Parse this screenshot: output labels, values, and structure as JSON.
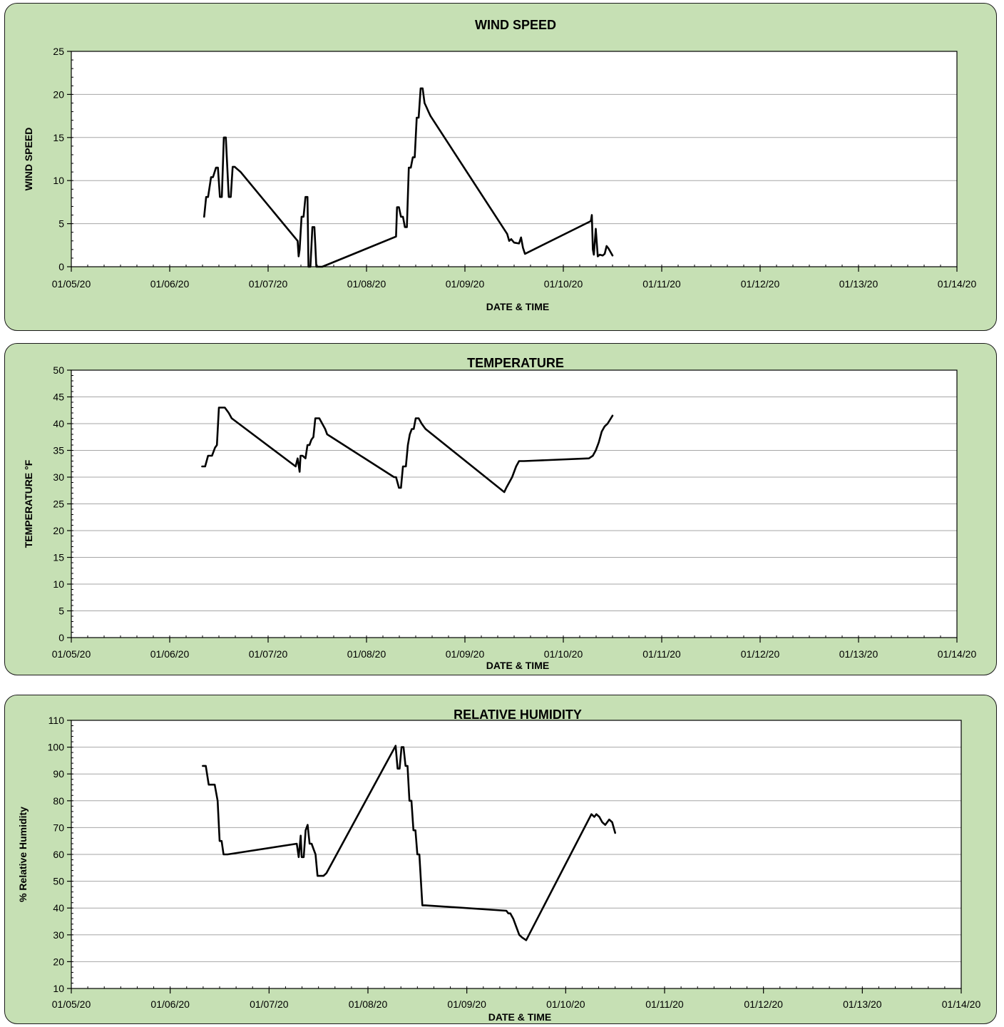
{
  "chart_data": [
    {
      "id": "wind",
      "type": "line",
      "title": "WIND SPEED",
      "xlabel": "DATE & TIME",
      "ylabel": "WIND SPEED",
      "xlim": [
        5,
        14
      ],
      "ylim": [
        0,
        25
      ],
      "ystep": 5,
      "x_tick_labels": [
        "01/05/20",
        "01/06/20",
        "01/07/20",
        "01/08/20",
        "01/09/20",
        "01/10/20",
        "01/11/20",
        "01/12/20",
        "01/13/20",
        "01/14/20"
      ],
      "grid": true,
      "line_color": "#000000",
      "series": [
        {
          "x": [
            6.35,
            6.37,
            6.39,
            6.42,
            6.44,
            6.47,
            6.49,
            6.51,
            6.53,
            6.55,
            6.57,
            6.6,
            6.62,
            6.64,
            6.66,
            6.68,
            6.7,
            6.72,
            7.3,
            7.31,
            7.32,
            7.34,
            7.36,
            7.38,
            7.4,
            7.41,
            7.42,
            7.43,
            7.45,
            7.47,
            7.48,
            7.49,
            7.5,
            7.55,
            8.3,
            8.31,
            8.33,
            8.35,
            8.37,
            8.39,
            8.41,
            8.43,
            8.45,
            8.47,
            8.49,
            8.51,
            8.53,
            8.55,
            8.57,
            8.59,
            8.61,
            8.63,
            8.65,
            9.43,
            9.45,
            9.47,
            9.5,
            9.55,
            9.57,
            9.59,
            9.61,
            10.28,
            10.29,
            10.3,
            10.31,
            10.33,
            10.35,
            10.37,
            10.4,
            10.42,
            10.44,
            10.46,
            10.5
          ],
          "y": [
            5.8,
            8.1,
            8.1,
            10.4,
            10.4,
            11.5,
            11.5,
            8.1,
            8.1,
            15.0,
            15.0,
            8.1,
            8.1,
            11.6,
            11.6,
            11.4,
            11.2,
            11.0,
            3.0,
            1.2,
            2.0,
            5.8,
            5.8,
            8.1,
            8.1,
            0.0,
            0.0,
            0.0,
            4.6,
            4.6,
            2.5,
            0.0,
            0.0,
            0.0,
            3.5,
            6.9,
            6.9,
            5.8,
            5.8,
            4.6,
            4.6,
            11.5,
            11.5,
            12.7,
            12.7,
            17.3,
            17.3,
            20.7,
            20.7,
            19.0,
            18.5,
            18.0,
            17.5,
            3.8,
            3.0,
            3.2,
            2.8,
            2.7,
            3.4,
            2.2,
            1.5,
            5.3,
            6.0,
            2.0,
            1.4,
            4.4,
            1.2,
            1.4,
            1.3,
            1.5,
            2.4,
            2.1,
            1.3
          ]
        }
      ]
    },
    {
      "id": "temp",
      "type": "line",
      "title": "TEMPERATURE",
      "xlabel": "DATE & TIME",
      "ylabel": "TEMPERATURE °F",
      "xlim": [
        5,
        14
      ],
      "ylim": [
        0,
        50
      ],
      "ystep": 5,
      "x_tick_labels": [
        "01/05/20",
        "01/06/20",
        "01/07/20",
        "01/08/20",
        "01/09/20",
        "01/10/20",
        "01/11/20",
        "01/12/20",
        "01/13/20",
        "01/14/20"
      ],
      "grid": true,
      "line_color": "#000000",
      "series": [
        {
          "x": [
            6.33,
            6.36,
            6.39,
            6.43,
            6.46,
            6.48,
            6.5,
            6.53,
            6.56,
            6.6,
            6.63,
            7.28,
            7.3,
            7.32,
            7.33,
            7.35,
            7.38,
            7.4,
            7.42,
            7.44,
            7.46,
            7.48,
            7.5,
            7.52,
            7.55,
            7.58,
            7.6,
            8.28,
            8.3,
            8.33,
            8.35,
            8.37,
            8.4,
            8.42,
            8.44,
            8.46,
            8.48,
            8.5,
            8.53,
            8.56,
            8.58,
            8.6,
            9.4,
            9.42,
            9.45,
            9.48,
            9.52,
            9.55,
            9.57,
            9.6,
            10.26,
            10.3,
            10.33,
            10.36,
            10.39,
            10.42,
            10.45,
            10.5
          ],
          "y": [
            32,
            32,
            34,
            34,
            35.5,
            36,
            43,
            43,
            43,
            42,
            41,
            32,
            33.5,
            31,
            34,
            34,
            33.5,
            36,
            36,
            37,
            37.5,
            41,
            41,
            41,
            40,
            39,
            38,
            30,
            30,
            28,
            28,
            32,
            32,
            36,
            38,
            39,
            39,
            41,
            41,
            40,
            39.5,
            39,
            27.2,
            28,
            29,
            30,
            32,
            33,
            33,
            33,
            33.5,
            34,
            35,
            36.5,
            38.5,
            39.5,
            40,
            41.5
          ]
        }
      ]
    },
    {
      "id": "rh",
      "type": "line",
      "title": "RELATIVE HUMIDITY",
      "xlabel": "DATE & TIME",
      "ylabel": "% Relative Humidity",
      "xlim": [
        5,
        14
      ],
      "ylim": [
        10,
        110
      ],
      "ystep": 10,
      "x_tick_labels": [
        "01/05/20",
        "01/06/20",
        "01/07/20",
        "01/08/20",
        "01/09/20",
        "01/10/20",
        "01/11/20",
        "01/12/20",
        "01/13/20",
        "01/14/20"
      ],
      "grid": true,
      "line_color": "#000000",
      "series": [
        {
          "x": [
            6.33,
            6.36,
            6.39,
            6.42,
            6.45,
            6.48,
            6.5,
            6.52,
            6.54,
            6.56,
            6.58,
            7.28,
            7.3,
            7.32,
            7.33,
            7.35,
            7.37,
            7.39,
            7.41,
            7.43,
            7.45,
            7.47,
            7.49,
            7.5,
            7.52,
            7.55,
            7.58,
            8.28,
            8.3,
            8.32,
            8.34,
            8.36,
            8.38,
            8.4,
            8.42,
            8.44,
            8.46,
            8.48,
            8.5,
            8.52,
            8.55,
            8.58,
            9.4,
            9.42,
            9.44,
            9.47,
            9.5,
            9.53,
            9.56,
            9.6,
            10.26,
            10.29,
            10.31,
            10.34,
            10.37,
            10.4,
            10.44,
            10.47,
            10.5
          ],
          "y": [
            93,
            93,
            86,
            86,
            86,
            80,
            65,
            65,
            60,
            60,
            60,
            64,
            59,
            67,
            59,
            59,
            69,
            71,
            64,
            64,
            62,
            60,
            52,
            52,
            52,
            52,
            53,
            100.5,
            92,
            92,
            100,
            100,
            93,
            93,
            80,
            80,
            69,
            69,
            60,
            60,
            41,
            41,
            39,
            38,
            38,
            36,
            33,
            30,
            29,
            28,
            75,
            74,
            75,
            74,
            72,
            71,
            73,
            72,
            68
          ]
        }
      ]
    }
  ]
}
